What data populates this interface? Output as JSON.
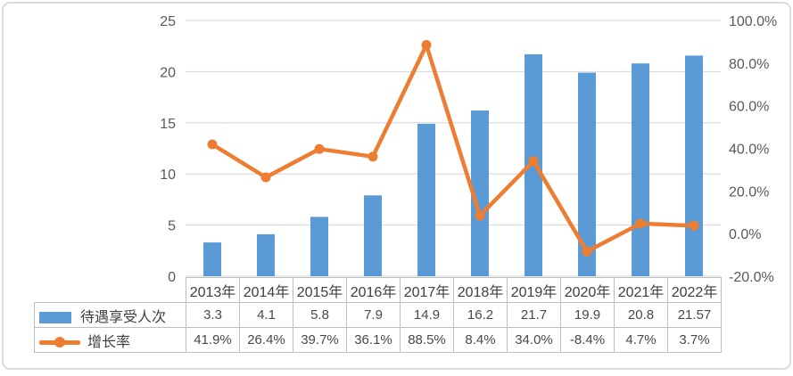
{
  "chart_data": {
    "type": "combo-bar-line",
    "categories": [
      "2013年",
      "2014年",
      "2015年",
      "2016年",
      "2017年",
      "2018年",
      "2019年",
      "2020年",
      "2021年",
      "2022年"
    ],
    "series": [
      {
        "name": "待遇享受人次",
        "type": "bar",
        "axis": "left",
        "color": "#5B9BD5",
        "values": [
          3.3,
          4.1,
          5.8,
          7.9,
          14.9,
          16.2,
          21.7,
          19.9,
          20.8,
          21.57
        ]
      },
      {
        "name": "增长率",
        "type": "line",
        "axis": "right",
        "color": "#ED7D31",
        "values": [
          41.9,
          26.4,
          39.7,
          36.1,
          88.5,
          8.4,
          34.0,
          -8.4,
          4.7,
          3.7
        ]
      }
    ],
    "left_axis": {
      "min": 0,
      "max": 25,
      "tick_values": [
        0,
        5,
        10,
        15,
        20,
        25
      ],
      "tick_labels": [
        "0",
        "5",
        "10",
        "15",
        "20",
        "25"
      ]
    },
    "right_axis": {
      "min": -20,
      "max": 100,
      "tick_values": [
        -20,
        0,
        20,
        40,
        60,
        80,
        100
      ],
      "tick_labels": [
        "-20.0%",
        "0.0%",
        "20.0%",
        "40.0%",
        "60.0%",
        "80.0%",
        "100.0%"
      ]
    },
    "grid": true,
    "legend_position": "data-table-left"
  },
  "table": {
    "header_years": [
      "2013年",
      "2014年",
      "2015年",
      "2016年",
      "2017年",
      "2018年",
      "2019年",
      "2020年",
      "2021年",
      "2022年"
    ],
    "rows": [
      {
        "label": "待遇享受人次",
        "swatch": "bar",
        "values": [
          "3.3",
          "4.1",
          "5.8",
          "7.9",
          "14.9",
          "16.2",
          "21.7",
          "19.9",
          "20.8",
          "21.57"
        ]
      },
      {
        "label": "增长率",
        "swatch": "line",
        "values": [
          "41.9%",
          "26.4%",
          "39.7%",
          "36.1%",
          "88.5%",
          "8.4%",
          "34.0%",
          "-8.4%",
          "4.7%",
          "3.7%"
        ]
      }
    ]
  },
  "colors": {
    "bar": "#5B9BD5",
    "line": "#ED7D31",
    "gridline": "#D6D6D6",
    "axis_text": "#595959",
    "table_border": "#BFBFBF",
    "card_border": "#D9DCDE"
  }
}
